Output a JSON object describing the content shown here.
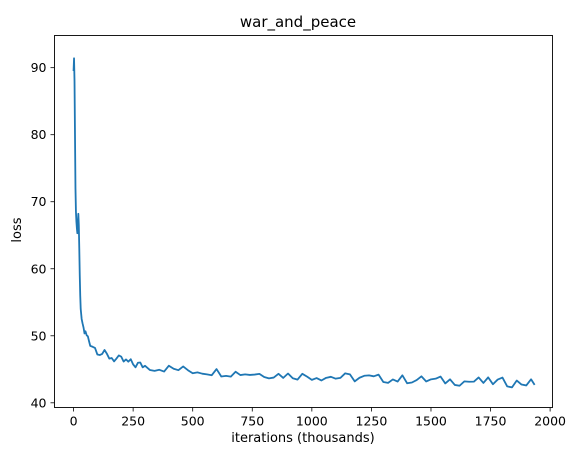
{
  "chart_data": {
    "type": "line",
    "title": "war_and_peace",
    "xlabel": "iterations (thousands)",
    "ylabel": "loss",
    "xlim": [
      -80,
      2010
    ],
    "ylim": [
      39.3,
      94.8
    ],
    "xticks": [
      0,
      250,
      500,
      750,
      1000,
      1250,
      1500,
      1750,
      2000
    ],
    "yticks": [
      40,
      50,
      60,
      70,
      80,
      90
    ],
    "grid": false,
    "legend": "none",
    "series": [
      {
        "color": "#1f77b4",
        "x": [
          0,
          2,
          4,
          6,
          8,
          10,
          12,
          14,
          16,
          18,
          20,
          22,
          24,
          26,
          28,
          30,
          34,
          38,
          42,
          46,
          50,
          55,
          60,
          65,
          70,
          80,
          90,
          100,
          110,
          120,
          130,
          140,
          150,
          160,
          170,
          180,
          190,
          200,
          210,
          220,
          230,
          240,
          250,
          260,
          270,
          280,
          290,
          300,
          320,
          340,
          360,
          380,
          400,
          420,
          440,
          460,
          480,
          500,
          520,
          540,
          560,
          580,
          600,
          620,
          640,
          660,
          680,
          700,
          720,
          740,
          760,
          780,
          800,
          820,
          840,
          860,
          880,
          900,
          920,
          940,
          960,
          980,
          1000,
          1020,
          1040,
          1060,
          1080,
          1100,
          1120,
          1140,
          1160,
          1180,
          1200,
          1220,
          1240,
          1260,
          1280,
          1300,
          1320,
          1340,
          1360,
          1380,
          1400,
          1420,
          1440,
          1460,
          1480,
          1500,
          1520,
          1540,
          1560,
          1580,
          1600,
          1620,
          1640,
          1660,
          1680,
          1700,
          1720,
          1740,
          1760,
          1780,
          1800,
          1820,
          1840,
          1860,
          1880,
          1900,
          1920,
          1935
        ],
        "y": [
          89.5,
          91.4,
          88.0,
          80.0,
          72.0,
          68.5,
          67.0,
          66.0,
          65.3,
          66.5,
          68.2,
          66.5,
          63.0,
          59.0,
          56.0,
          54.0,
          52.5,
          51.8,
          51.0,
          50.6,
          50.3,
          50.0,
          49.7,
          49.3,
          49.0,
          48.6,
          48.2,
          47.9,
          47.6,
          47.4,
          47.2,
          47.0,
          46.9,
          46.8,
          46.6,
          46.5,
          46.4,
          46.3,
          46.2,
          46.1,
          46.0,
          45.9,
          45.8,
          45.7,
          45.7,
          45.6,
          45.6,
          45.5,
          45.4,
          45.3,
          45.2,
          45.2,
          45.1,
          45.0,
          45.0,
          44.9,
          44.9,
          44.8,
          44.8,
          44.8,
          44.7,
          44.7,
          44.6,
          44.6,
          44.6,
          44.5,
          44.5,
          44.5,
          44.4,
          44.4,
          44.4,
          44.3,
          44.3,
          44.3,
          44.2,
          44.2,
          44.2,
          44.1,
          44.1,
          44.1,
          44.0,
          44.0,
          44.0,
          44.0,
          43.9,
          43.9,
          43.9,
          43.8,
          43.8,
          43.8,
          43.8,
          43.7,
          43.7,
          43.7,
          43.7,
          43.6,
          43.6,
          43.6,
          43.6,
          43.5,
          43.5,
          43.5,
          43.5,
          43.5,
          43.4,
          43.4,
          43.4,
          43.4,
          43.3,
          43.3,
          43.3,
          43.3,
          43.3,
          43.2,
          43.2,
          43.2,
          43.2,
          43.2,
          43.1,
          43.1,
          43.1,
          43.1,
          43.1,
          43.0,
          43.0,
          43.0,
          43.0,
          43.0,
          42.9,
          43.0
        ]
      }
    ]
  }
}
